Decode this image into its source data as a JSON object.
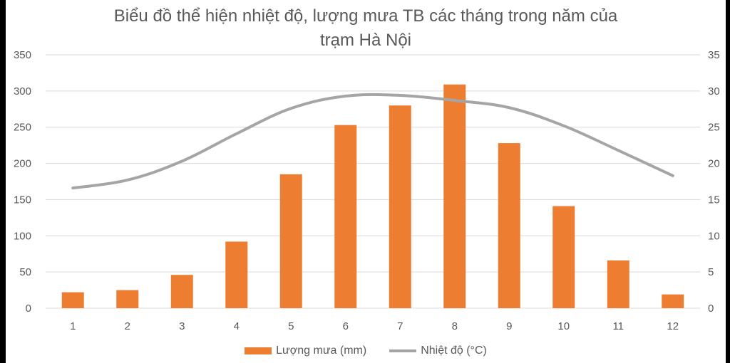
{
  "chart_data": {
    "type": "bar",
    "title_line1": "Biểu đồ thể hiện nhiệt độ, lượng mưa TB các tháng trong năm của",
    "title_line2": "trạm Hà Nội",
    "categories": [
      "1",
      "2",
      "3",
      "4",
      "5",
      "6",
      "7",
      "8",
      "9",
      "10",
      "11",
      "12"
    ],
    "series": [
      {
        "name": "Lượng mưa (mm)",
        "type": "bar",
        "axis": "left",
        "color": "#ED7D31",
        "values": [
          22,
          25,
          46,
          92,
          185,
          253,
          280,
          309,
          228,
          141,
          66,
          19
        ]
      },
      {
        "name": "Nhiệt độ (°C)",
        "type": "line",
        "axis": "right",
        "color": "#A5A5A5",
        "values": [
          16.6,
          17.7,
          20.3,
          24.1,
          27.6,
          29.3,
          29.4,
          28.7,
          27.7,
          25.2,
          21.8,
          18.3
        ]
      }
    ],
    "left_axis": {
      "ylim": [
        0,
        350
      ],
      "ticks": [
        "0",
        "50",
        "100",
        "150",
        "200",
        "250",
        "300",
        "350"
      ]
    },
    "right_axis": {
      "ylim": [
        0,
        35
      ],
      "ticks": [
        "0",
        "5",
        "10",
        "15",
        "20",
        "25",
        "30",
        "35"
      ]
    },
    "grid": true,
    "legend_position": "bottom"
  }
}
